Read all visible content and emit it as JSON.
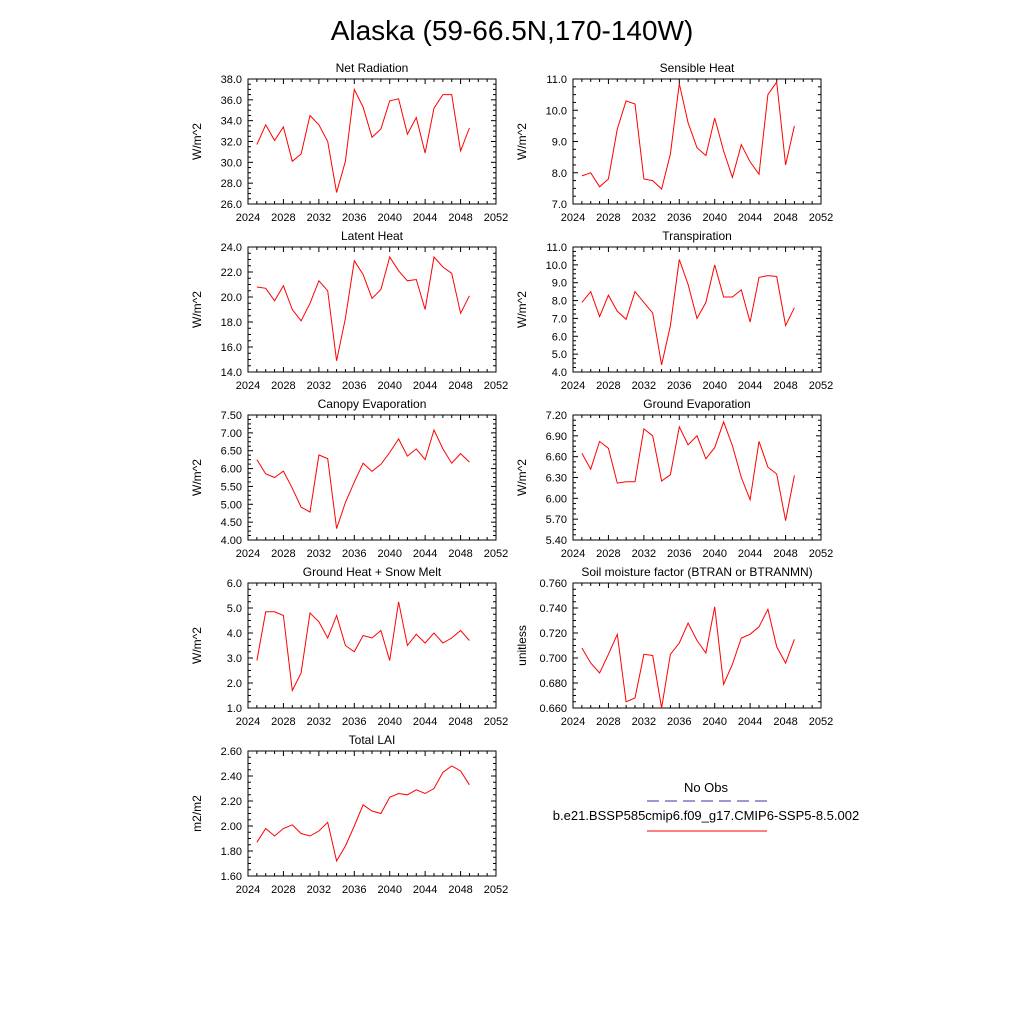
{
  "figure_title": "Alaska (59-66.5N,170-140W)",
  "legend": {
    "entries": [
      {
        "label": "No Obs",
        "color": "#3333aa",
        "style": "dashed"
      },
      {
        "label": "b.e21.BSSP585cmip6.f09_g17.CMIP6-SSP5-8.5.002",
        "color": "#ff0000",
        "style": "solid"
      }
    ]
  },
  "chart_data": [
    {
      "type": "line",
      "title": "Net Radiation",
      "ylabel": "W/m^2",
      "xlim": [
        2024,
        2052
      ],
      "ylim": [
        26.0,
        38.0
      ],
      "xticks": [
        2024,
        2028,
        2032,
        2036,
        2040,
        2044,
        2048,
        2052
      ],
      "yticks": [
        "26.0",
        "28.0",
        "30.0",
        "32.0",
        "34.0",
        "36.0",
        "38.0"
      ],
      "color": "#ff0000",
      "x": [
        2025,
        2026,
        2027,
        2028,
        2029,
        2030,
        2031,
        2032,
        2033,
        2034,
        2035,
        2036,
        2037,
        2038,
        2039,
        2040,
        2041,
        2042,
        2043,
        2044,
        2045,
        2046,
        2047,
        2048,
        2049
      ],
      "y": [
        31.7,
        33.6,
        32.1,
        33.4,
        30.1,
        30.8,
        34.5,
        33.6,
        32.0,
        27.1,
        30.1,
        37.0,
        35.3,
        32.4,
        33.2,
        35.9,
        36.1,
        32.7,
        34.3,
        30.9,
        35.2,
        36.5,
        36.5,
        31.1,
        33.3
      ]
    },
    {
      "type": "line",
      "title": "Sensible Heat",
      "ylabel": "W/m^2",
      "xlim": [
        2024,
        2052
      ],
      "ylim": [
        7.0,
        11.0
      ],
      "xticks": [
        2024,
        2028,
        2032,
        2036,
        2040,
        2044,
        2048,
        2052
      ],
      "yticks": [
        "7.0",
        "8.0",
        "9.0",
        "10.0",
        "11.0"
      ],
      "color": "#ff0000",
      "x": [
        2025,
        2026,
        2027,
        2028,
        2029,
        2030,
        2031,
        2032,
        2033,
        2034,
        2035,
        2036,
        2037,
        2038,
        2039,
        2040,
        2041,
        2042,
        2043,
        2044,
        2045,
        2046,
        2047,
        2048,
        2049
      ],
      "y": [
        7.9,
        8.0,
        7.55,
        7.8,
        9.4,
        10.3,
        10.2,
        7.8,
        7.75,
        7.48,
        8.6,
        10.85,
        9.6,
        8.8,
        8.55,
        9.75,
        8.7,
        7.85,
        8.9,
        8.35,
        7.95,
        10.5,
        10.9,
        8.25,
        9.5
      ]
    },
    {
      "type": "line",
      "title": "Latent Heat",
      "ylabel": "W/m^2",
      "xlim": [
        2024,
        2052
      ],
      "ylim": [
        14.0,
        24.0
      ],
      "xticks": [
        2024,
        2028,
        2032,
        2036,
        2040,
        2044,
        2048,
        2052
      ],
      "yticks": [
        "14.0",
        "16.0",
        "18.0",
        "20.0",
        "22.0",
        "24.0"
      ],
      "color": "#ff0000",
      "x": [
        2025,
        2026,
        2027,
        2028,
        2029,
        2030,
        2031,
        2032,
        2033,
        2034,
        2035,
        2036,
        2037,
        2038,
        2039,
        2040,
        2041,
        2042,
        2043,
        2044,
        2045,
        2046,
        2047,
        2048,
        2049
      ],
      "y": [
        20.8,
        20.7,
        19.7,
        20.9,
        19.0,
        18.1,
        19.5,
        21.3,
        20.5,
        14.9,
        18.3,
        22.9,
        21.8,
        19.9,
        20.6,
        23.2,
        22.1,
        21.3,
        21.4,
        19.0,
        23.2,
        22.4,
        21.9,
        18.7,
        20.1
      ]
    },
    {
      "type": "line",
      "title": "Transpiration",
      "ylabel": "W/m^2",
      "xlim": [
        2024,
        2052
      ],
      "ylim": [
        4.0,
        11.0
      ],
      "xticks": [
        2024,
        2028,
        2032,
        2036,
        2040,
        2044,
        2048,
        2052
      ],
      "yticks": [
        "4.0",
        "5.0",
        "6.0",
        "7.0",
        "8.0",
        "9.0",
        "10.0",
        "11.0"
      ],
      "color": "#ff0000",
      "x": [
        2025,
        2026,
        2027,
        2028,
        2029,
        2030,
        2031,
        2032,
        2033,
        2034,
        2035,
        2036,
        2037,
        2038,
        2039,
        2040,
        2041,
        2042,
        2043,
        2044,
        2045,
        2046,
        2047,
        2048,
        2049
      ],
      "y": [
        7.9,
        8.5,
        7.1,
        8.3,
        7.4,
        6.95,
        8.5,
        7.9,
        7.3,
        4.4,
        6.6,
        10.3,
        8.9,
        7.0,
        7.9,
        10.0,
        8.2,
        8.2,
        8.6,
        6.8,
        9.3,
        9.4,
        9.35,
        6.6,
        7.6
      ]
    },
    {
      "type": "line",
      "title": "Canopy Evaporation",
      "ylabel": "W/m^2",
      "xlim": [
        2024,
        2052
      ],
      "ylim": [
        4.0,
        7.5
      ],
      "xticks": [
        2024,
        2028,
        2032,
        2036,
        2040,
        2044,
        2048,
        2052
      ],
      "yticks": [
        "4.00",
        "4.50",
        "5.00",
        "5.50",
        "6.00",
        "6.50",
        "7.00",
        "7.50"
      ],
      "color": "#ff0000",
      "x": [
        2025,
        2026,
        2027,
        2028,
        2029,
        2030,
        2031,
        2032,
        2033,
        2034,
        2035,
        2036,
        2037,
        2038,
        2039,
        2040,
        2041,
        2042,
        2043,
        2044,
        2045,
        2046,
        2047,
        2048,
        2049
      ],
      "y": [
        6.25,
        5.85,
        5.75,
        5.93,
        5.45,
        4.92,
        4.78,
        6.38,
        6.28,
        4.32,
        5.05,
        5.62,
        6.15,
        5.92,
        6.12,
        6.45,
        6.83,
        6.35,
        6.55,
        6.25,
        7.08,
        6.55,
        6.15,
        6.42,
        6.18
      ]
    },
    {
      "type": "line",
      "title": "Ground Evaporation",
      "ylabel": "W/m^2",
      "xlim": [
        2024,
        2052
      ],
      "ylim": [
        5.4,
        7.2
      ],
      "xticks": [
        2024,
        2028,
        2032,
        2036,
        2040,
        2044,
        2048,
        2052
      ],
      "yticks": [
        "5.40",
        "5.70",
        "6.00",
        "6.30",
        "6.60",
        "6.90",
        "7.20"
      ],
      "color": "#ff0000",
      "x": [
        2025,
        2026,
        2027,
        2028,
        2029,
        2030,
        2031,
        2032,
        2033,
        2034,
        2035,
        2036,
        2037,
        2038,
        2039,
        2040,
        2041,
        2042,
        2043,
        2044,
        2045,
        2046,
        2047,
        2048,
        2049
      ],
      "y": [
        6.65,
        6.42,
        6.82,
        6.72,
        6.22,
        6.24,
        6.24,
        7.0,
        6.9,
        6.25,
        6.34,
        7.03,
        6.77,
        6.9,
        6.57,
        6.73,
        7.1,
        6.76,
        6.3,
        5.98,
        6.82,
        6.45,
        6.35,
        5.68,
        6.33
      ]
    },
    {
      "type": "line",
      "title": "Ground Heat + Snow Melt",
      "ylabel": "W/m^2",
      "xlim": [
        2024,
        2052
      ],
      "ylim": [
        1.0,
        6.0
      ],
      "xticks": [
        2024,
        2028,
        2032,
        2036,
        2040,
        2044,
        2048,
        2052
      ],
      "yticks": [
        "1.0",
        "2.0",
        "3.0",
        "4.0",
        "5.0",
        "6.0"
      ],
      "color": "#ff0000",
      "x": [
        2025,
        2026,
        2027,
        2028,
        2029,
        2030,
        2031,
        2032,
        2033,
        2034,
        2035,
        2036,
        2037,
        2038,
        2039,
        2040,
        2041,
        2042,
        2043,
        2044,
        2045,
        2046,
        2047,
        2048,
        2049
      ],
      "y": [
        2.9,
        4.85,
        4.85,
        4.7,
        1.7,
        2.4,
        4.8,
        4.45,
        3.8,
        4.7,
        3.5,
        3.25,
        3.9,
        3.8,
        4.1,
        2.9,
        5.25,
        3.5,
        3.95,
        3.6,
        4.0,
        3.6,
        3.8,
        4.1,
        3.7
      ]
    },
    {
      "type": "line",
      "title": "Soil moisture factor (BTRAN or BTRANMN)",
      "ylabel": "unitless",
      "xlim": [
        2024,
        2052
      ],
      "ylim": [
        0.66,
        0.76
      ],
      "xticks": [
        2024,
        2028,
        2032,
        2036,
        2040,
        2044,
        2048,
        2052
      ],
      "yticks": [
        "0.660",
        "0.680",
        "0.700",
        "0.720",
        "0.740",
        "0.760"
      ],
      "color": "#ff0000",
      "x": [
        2025,
        2026,
        2027,
        2028,
        2029,
        2030,
        2031,
        2032,
        2033,
        2034,
        2035,
        2036,
        2037,
        2038,
        2039,
        2040,
        2041,
        2042,
        2043,
        2044,
        2045,
        2046,
        2047,
        2048,
        2049
      ],
      "y": [
        0.708,
        0.696,
        0.688,
        0.703,
        0.719,
        0.665,
        0.668,
        0.703,
        0.702,
        0.66,
        0.703,
        0.712,
        0.728,
        0.714,
        0.704,
        0.741,
        0.679,
        0.695,
        0.716,
        0.719,
        0.725,
        0.739,
        0.709,
        0.696,
        0.715
      ]
    },
    {
      "type": "line",
      "title": "Total LAI",
      "ylabel": "m2/m2",
      "xlim": [
        2024,
        2052
      ],
      "ylim": [
        1.6,
        2.6
      ],
      "xticks": [
        2024,
        2028,
        2032,
        2036,
        2040,
        2044,
        2048,
        2052
      ],
      "yticks": [
        "1.60",
        "1.80",
        "2.00",
        "2.20",
        "2.40",
        "2.60"
      ],
      "color": "#ff0000",
      "x": [
        2025,
        2026,
        2027,
        2028,
        2029,
        2030,
        2031,
        2032,
        2033,
        2034,
        2035,
        2036,
        2037,
        2038,
        2039,
        2040,
        2041,
        2042,
        2043,
        2044,
        2045,
        2046,
        2047,
        2048,
        2049
      ],
      "y": [
        1.87,
        1.98,
        1.92,
        1.98,
        2.01,
        1.94,
        1.92,
        1.96,
        2.03,
        1.72,
        1.84,
        2.0,
        2.17,
        2.12,
        2.1,
        2.23,
        2.26,
        2.25,
        2.29,
        2.26,
        2.3,
        2.43,
        2.48,
        2.44,
        2.33
      ]
    }
  ]
}
